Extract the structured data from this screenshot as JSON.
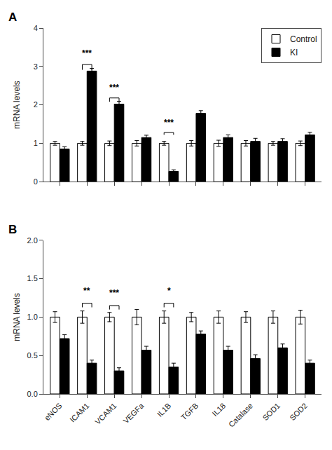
{
  "chart_data": [
    {
      "type": "bar",
      "title": "A",
      "categories": [
        "eNOS",
        "ICAM1",
        "VCAM1",
        "VEGFa",
        "IL1B",
        "TGFB",
        "IL18",
        "Catalase",
        "SOD1",
        "SOD2"
      ],
      "series": [
        {
          "name": "Control",
          "color": "#ffffff",
          "values": [
            1.0,
            1.0,
            1.0,
            1.0,
            1.0,
            1.0,
            1.0,
            1.0,
            1.0,
            1.0
          ],
          "errors": [
            0.05,
            0.05,
            0.06,
            0.07,
            0.05,
            0.07,
            0.08,
            0.07,
            0.05,
            0.06
          ]
        },
        {
          "name": "KI",
          "color": "#000000",
          "values": [
            0.85,
            2.88,
            2.02,
            1.15,
            0.27,
            1.78,
            1.15,
            1.05,
            1.05,
            1.22
          ],
          "errors": [
            0.06,
            0.07,
            0.07,
            0.06,
            0.04,
            0.07,
            0.07,
            0.08,
            0.07,
            0.07
          ]
        }
      ],
      "ylabel": "mRNA levels",
      "ylim": [
        0,
        4
      ],
      "yticks": [
        0,
        1,
        2,
        3,
        4
      ],
      "grid": false,
      "legend": "upper right",
      "tick_labels": "y",
      "annotations": [
        {
          "category": "ICAM1",
          "text": "***",
          "y": 3.18,
          "y_bracket": 3.05
        },
        {
          "category": "VCAM1",
          "text": "***",
          "y": 2.28,
          "y_bracket": 2.18
        },
        {
          "category": "IL1B",
          "text": "***",
          "y": 1.38,
          "y_bracket": 1.28
        }
      ]
    },
    {
      "type": "bar",
      "title": "B",
      "categories": [
        "eNOS",
        "ICAM1",
        "VCAM1",
        "VEGFa",
        "IL1B",
        "TGFB",
        "IL18",
        "Catalase",
        "SOD1",
        "SOD2"
      ],
      "series": [
        {
          "name": "Control",
          "color": "#ffffff",
          "values": [
            1.0,
            1.0,
            1.0,
            1.0,
            1.0,
            1.0,
            1.0,
            1.0,
            1.0,
            1.0
          ],
          "errors": [
            0.07,
            0.08,
            0.06,
            0.1,
            0.08,
            0.06,
            0.08,
            0.07,
            0.08,
            0.09
          ]
        },
        {
          "name": "KI",
          "color": "#000000",
          "values": [
            0.72,
            0.4,
            0.3,
            0.57,
            0.35,
            0.78,
            0.57,
            0.46,
            0.6,
            0.4
          ],
          "errors": [
            0.05,
            0.04,
            0.04,
            0.05,
            0.05,
            0.04,
            0.05,
            0.05,
            0.05,
            0.04
          ]
        }
      ],
      "ylabel": "mRNA levels",
      "ylim": [
        0,
        2.0
      ],
      "yticks": [
        {
          "value": 0,
          "label": "0.0"
        },
        0.5,
        {
          "value": 1,
          "label": "1.0"
        },
        1.5,
        {
          "value": 2,
          "label": "2.0"
        }
      ],
      "grid": false,
      "annotations": [
        {
          "category": "ICAM1",
          "text": "**",
          "y": 1.26,
          "y_bracket": 1.18
        },
        {
          "category": "VCAM1",
          "text": "***",
          "y": 1.23,
          "y_bracket": 1.15
        },
        {
          "category": "IL1B",
          "text": "*",
          "y": 1.26,
          "y_bracket": 1.18
        }
      ]
    }
  ]
}
